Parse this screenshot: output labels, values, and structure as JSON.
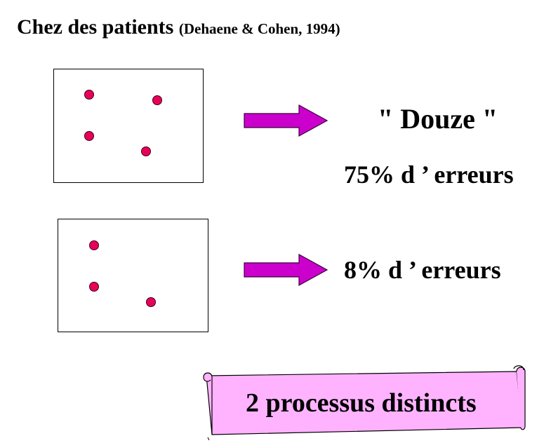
{
  "title": {
    "main": "Chez des patients",
    "citation": "(Dehaene & Cohen, 1994)"
  },
  "colors": {
    "dot": "#e8005a",
    "arrow": "#cc00cc",
    "scroll": "#ffb3ff"
  },
  "trials": [
    {
      "dot_count": 4,
      "response_word": "\" Douze \"",
      "error_rate": "75% d ’ erreurs"
    },
    {
      "dot_count": 3,
      "error_rate": "8% d ’ erreurs"
    }
  ],
  "conclusion": "2 processus distincts"
}
